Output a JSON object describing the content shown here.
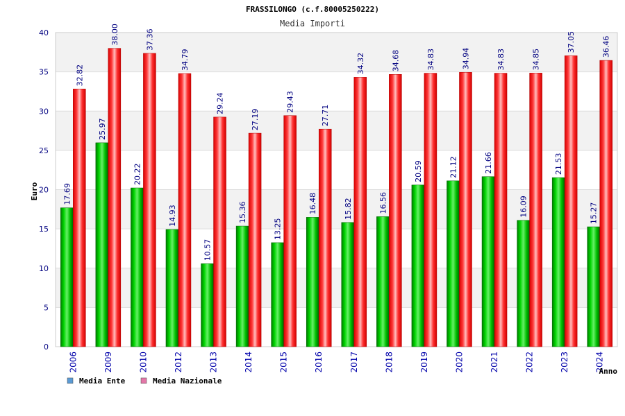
{
  "chart_data": {
    "type": "bar",
    "title": "FRASSILONGO (c.f.80005250222)",
    "subtitle": "Media Importi",
    "xlabel": "Anno",
    "ylabel": "Euro",
    "ylim": [
      0,
      40
    ],
    "yticks": [
      0,
      5,
      10,
      15,
      20,
      25,
      30,
      35,
      40
    ],
    "grid": true,
    "legend_position": "bottom-left",
    "categories": [
      "2006",
      "2009",
      "2010",
      "2012",
      "2013",
      "2014",
      "2015",
      "2016",
      "2017",
      "2018",
      "2019",
      "2020",
      "2021",
      "2022",
      "2023",
      "2024"
    ],
    "series": [
      {
        "name": "Media Ente",
        "legend_color": "#5b9bd5",
        "color": "#00aa00",
        "values": [
          17.69,
          25.97,
          20.22,
          14.93,
          10.57,
          15.36,
          13.25,
          16.48,
          15.82,
          16.56,
          20.59,
          21.12,
          21.66,
          16.09,
          21.53,
          15.27
        ],
        "labels": [
          "17.69",
          "25.97",
          "20.22",
          "14.93",
          "10.57",
          "15.36",
          "13.25",
          "16.48",
          "15.82",
          "16.56",
          "20.59",
          "21.12",
          "21.66",
          "16.09",
          "21.53",
          "15.27"
        ]
      },
      {
        "name": "Media Nazionale",
        "legend_color": "#e377a8",
        "color": "#ee0000",
        "values": [
          32.82,
          38.0,
          37.36,
          34.79,
          29.24,
          27.19,
          29.43,
          27.71,
          34.32,
          34.68,
          34.83,
          34.94,
          34.83,
          34.85,
          37.05,
          36.46
        ],
        "labels": [
          "32.82",
          "38.00",
          "37.36",
          "34.79",
          "29.24",
          "27.19",
          "29.43",
          "27.71",
          "34.32",
          "34.68",
          "34.83",
          "34.94",
          "34.83",
          "34.85",
          "37.05",
          "36.46"
        ]
      }
    ]
  }
}
